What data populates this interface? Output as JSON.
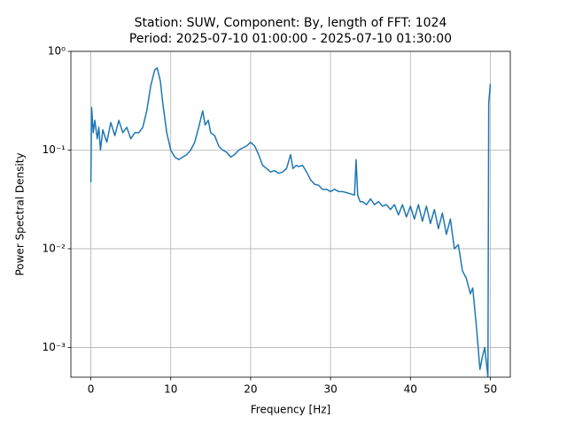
{
  "chart_data": {
    "type": "line",
    "title": [
      "Station: SUW, Component: By, length of FFT: 1024",
      "Period: 2025-07-10 01:00:00 - 2025-07-10 01:30:00"
    ],
    "xlabel": "Frequency [Hz]",
    "ylabel": "Power Spectral Density",
    "x": [
      0,
      0.1,
      0.3,
      0.5,
      0.8,
      1.0,
      1.2,
      1.5,
      2,
      2.5,
      3,
      3.5,
      4,
      4.5,
      5,
      5.5,
      6,
      6.5,
      7,
      7.5,
      8,
      8.3,
      8.7,
      9,
      9.5,
      10,
      10.5,
      11,
      11.5,
      12,
      12.5,
      13,
      13.5,
      14,
      14.3,
      14.7,
      15,
      15.5,
      16,
      16.5,
      17,
      17.5,
      18,
      18.5,
      19,
      19.5,
      20,
      20.5,
      21,
      21.5,
      22,
      22.5,
      23,
      23.5,
      24,
      24.5,
      25,
      25.3,
      25.7,
      26,
      26.5,
      27,
      27.5,
      28,
      28.5,
      29,
      29.5,
      30,
      30.5,
      31,
      31.5,
      32,
      32.5,
      33,
      33.2,
      33.4,
      33.7,
      34,
      34.5,
      35,
      35.5,
      36,
      36.5,
      37,
      37.5,
      38,
      38.5,
      39,
      39.5,
      40,
      40.5,
      41,
      41.5,
      42,
      42.5,
      43,
      43.5,
      44,
      44.5,
      45,
      45.5,
      46,
      46.5,
      47,
      47.5,
      47.8,
      48.3,
      48.7,
      49,
      49.3,
      49.7,
      49.8,
      50
    ],
    "series": [
      {
        "color": "#1f77b4",
        "values": [
          0.047,
          0.27,
          0.15,
          0.2,
          0.13,
          0.17,
          0.1,
          0.16,
          0.12,
          0.19,
          0.14,
          0.2,
          0.15,
          0.17,
          0.13,
          0.15,
          0.15,
          0.17,
          0.25,
          0.45,
          0.65,
          0.68,
          0.5,
          0.3,
          0.15,
          0.1,
          0.085,
          0.08,
          0.085,
          0.09,
          0.1,
          0.12,
          0.17,
          0.25,
          0.18,
          0.2,
          0.15,
          0.14,
          0.11,
          0.1,
          0.095,
          0.085,
          0.09,
          0.1,
          0.105,
          0.11,
          0.12,
          0.11,
          0.09,
          0.07,
          0.065,
          0.06,
          0.062,
          0.058,
          0.06,
          0.065,
          0.09,
          0.065,
          0.07,
          0.068,
          0.07,
          0.06,
          0.05,
          0.045,
          0.044,
          0.04,
          0.04,
          0.038,
          0.04,
          0.038,
          0.038,
          0.037,
          0.036,
          0.035,
          0.08,
          0.035,
          0.03,
          0.03,
          0.028,
          0.032,
          0.028,
          0.03,
          0.027,
          0.028,
          0.025,
          0.028,
          0.022,
          0.028,
          0.021,
          0.027,
          0.02,
          0.028,
          0.019,
          0.027,
          0.018,
          0.025,
          0.016,
          0.023,
          0.014,
          0.02,
          0.01,
          0.011,
          0.006,
          0.005,
          0.0035,
          0.004,
          0.0015,
          0.0006,
          0.0008,
          0.001,
          0.0005,
          0.3,
          0.47
        ]
      }
    ],
    "xlim": [
      -2.5,
      52.5
    ],
    "xticks": [
      0,
      10,
      20,
      30,
      40,
      50
    ],
    "ylim": [
      0.0005,
      1
    ],
    "ylog": true,
    "yticks": [
      {
        "value": 0.001,
        "label": "10⁻³"
      },
      {
        "value": 0.01,
        "label": "10⁻²"
      },
      {
        "value": 0.1,
        "label": "10⁻¹"
      },
      {
        "value": 1,
        "label": "10⁰"
      }
    ],
    "grid": true
  }
}
